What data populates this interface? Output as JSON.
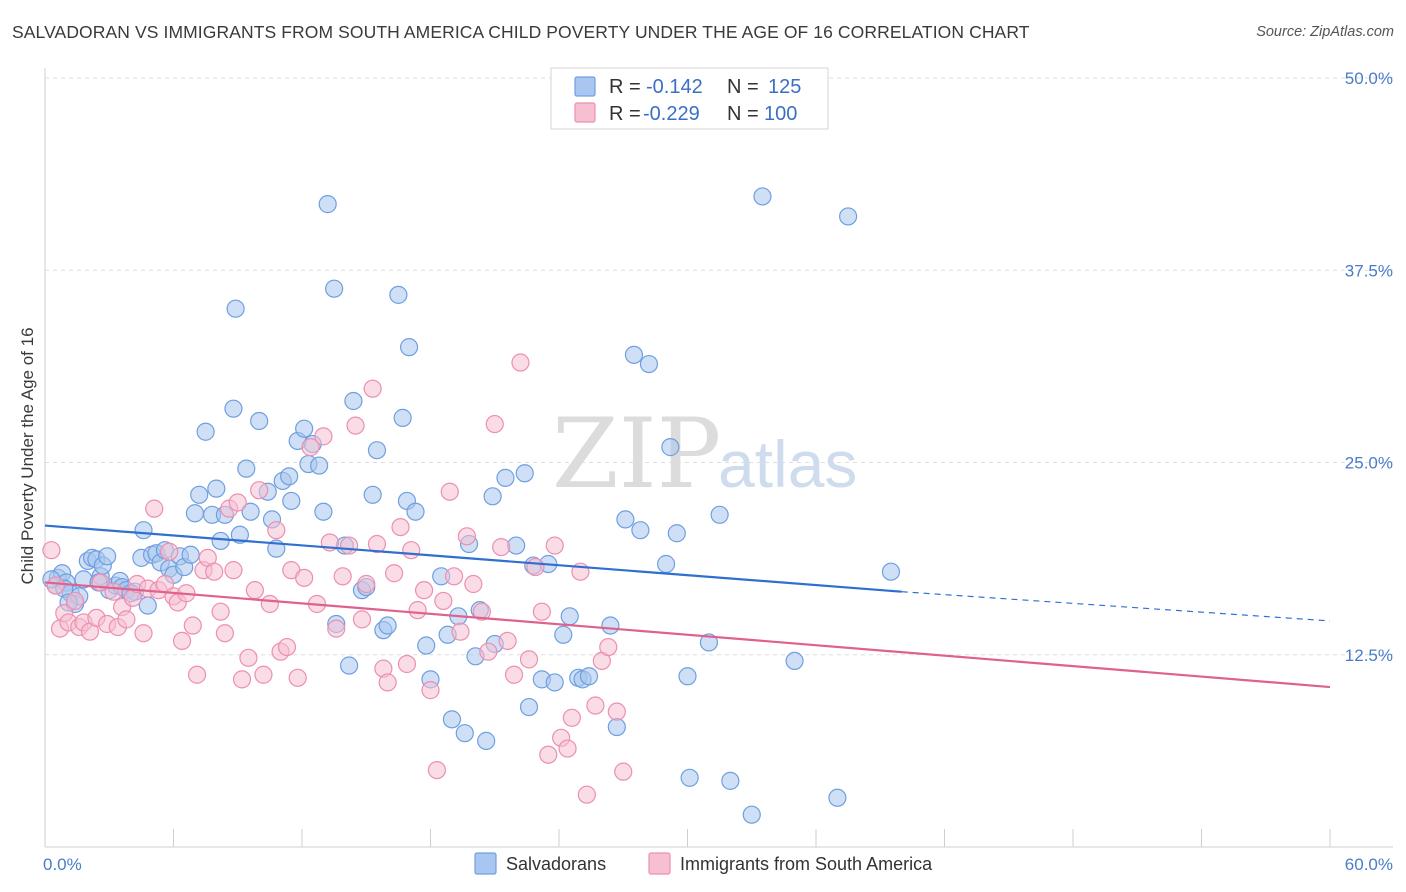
{
  "header": {
    "title": "SALVADORAN VS IMMIGRANTS FROM SOUTH AMERICA CHILD POVERTY UNDER THE AGE OF 16 CORRELATION CHART",
    "source": "Source: ZipAtlas.com"
  },
  "watermark": {
    "part1": "ZIP",
    "part2": "atlas"
  },
  "legend": {
    "rows": [
      {
        "r_label": "R =",
        "r_value": "-0.142",
        "n_label": "N =",
        "n_value": "125"
      },
      {
        "r_label": "R =",
        "r_value": "-0.229",
        "n_label": "N =",
        "n_value": "100"
      }
    ]
  },
  "bottom_legend": [
    "Salvadorans",
    "Immigrants from South America"
  ],
  "colors": {
    "blue_fill": "#a8c6ef",
    "blue_stroke": "#6f9fe0",
    "blue_line": "#2f6fd0",
    "pink_fill": "#f6bfd2",
    "pink_stroke": "#ec8fb0",
    "pink_line": "#e0608e"
  },
  "chart_data": {
    "type": "scatter",
    "xlabel": "",
    "ylabel": "Child Poverty Under the Age of 16",
    "xlim": [
      0,
      60
    ],
    "ylim": [
      0,
      50
    ],
    "x_tick_labels": [
      "0.0%",
      "60.0%"
    ],
    "y_tick_labels": [
      "50.0%",
      "37.5%",
      "25.0%",
      "12.5%"
    ],
    "y_ticks": [
      50,
      37.5,
      25,
      12.5
    ],
    "grid": true,
    "legend_position": "top-center",
    "series": [
      {
        "name": "Salvadorans",
        "trend": {
          "x": [
            0,
            40
          ],
          "y": [
            20.9,
            16.6
          ],
          "dashed_to": [
            60,
            14.7
          ]
        },
        "points": [
          [
            0.5,
            17.0
          ],
          [
            0.6,
            17.5
          ],
          [
            0.8,
            17.8
          ],
          [
            1.0,
            17.2
          ],
          [
            1.2,
            16.5
          ],
          [
            1.4,
            15.8
          ],
          [
            1.6,
            16.3
          ],
          [
            1.8,
            17.4
          ],
          [
            2.0,
            18.6
          ],
          [
            2.2,
            18.8
          ],
          [
            2.4,
            18.7
          ],
          [
            2.6,
            17.6
          ],
          [
            2.7,
            18.3
          ],
          [
            2.9,
            18.9
          ],
          [
            3.0,
            16.7
          ],
          [
            3.3,
            17.0
          ],
          [
            3.5,
            17.3
          ],
          [
            3.6,
            16.9
          ],
          [
            3.8,
            16.7
          ],
          [
            4.2,
            16.6
          ],
          [
            4.5,
            18.8
          ],
          [
            4.8,
            15.7
          ],
          [
            4.6,
            20.6
          ],
          [
            5.0,
            19.0
          ],
          [
            5.2,
            19.1
          ],
          [
            5.4,
            18.5
          ],
          [
            5.6,
            19.3
          ],
          [
            5.8,
            18.1
          ],
          [
            6.0,
            17.7
          ],
          [
            6.3,
            18.9
          ],
          [
            6.5,
            18.2
          ],
          [
            7.0,
            21.7
          ],
          [
            7.2,
            22.9
          ],
          [
            7.5,
            27.0
          ],
          [
            7.8,
            21.6
          ],
          [
            8.0,
            23.3
          ],
          [
            8.2,
            19.9
          ],
          [
            8.4,
            21.6
          ],
          [
            8.8,
            28.5
          ],
          [
            8.9,
            35.0
          ],
          [
            9.1,
            20.3
          ],
          [
            9.4,
            24.6
          ],
          [
            9.6,
            21.8
          ],
          [
            10.0,
            27.7
          ],
          [
            10.4,
            23.1
          ],
          [
            10.6,
            21.3
          ],
          [
            10.8,
            19.4
          ],
          [
            11.1,
            23.8
          ],
          [
            11.4,
            24.1
          ],
          [
            11.5,
            22.5
          ],
          [
            11.8,
            26.4
          ],
          [
            12.1,
            27.2
          ],
          [
            12.3,
            24.9
          ],
          [
            12.5,
            26.2
          ],
          [
            12.8,
            24.8
          ],
          [
            13.0,
            21.8
          ],
          [
            13.2,
            41.8
          ],
          [
            13.5,
            36.3
          ],
          [
            13.6,
            14.5
          ],
          [
            14.0,
            19.6
          ],
          [
            14.2,
            11.8
          ],
          [
            14.4,
            29.0
          ],
          [
            14.8,
            16.7
          ],
          [
            15.0,
            16.9
          ],
          [
            15.3,
            22.9
          ],
          [
            15.5,
            25.8
          ],
          [
            15.8,
            14.1
          ],
          [
            16.0,
            14.4
          ],
          [
            16.5,
            35.9
          ],
          [
            16.7,
            27.9
          ],
          [
            16.9,
            22.5
          ],
          [
            17.0,
            32.5
          ],
          [
            17.3,
            21.8
          ],
          [
            17.8,
            13.1
          ],
          [
            18.0,
            10.9
          ],
          [
            18.5,
            17.6
          ],
          [
            18.8,
            13.8
          ],
          [
            19.0,
            8.3
          ],
          [
            19.3,
            15.0
          ],
          [
            19.6,
            7.4
          ],
          [
            19.8,
            19.7
          ],
          [
            20.1,
            12.4
          ],
          [
            20.3,
            15.4
          ],
          [
            20.6,
            6.9
          ],
          [
            20.9,
            22.8
          ],
          [
            21.0,
            13.2
          ],
          [
            21.5,
            24.0
          ],
          [
            22.0,
            19.6
          ],
          [
            22.4,
            24.3
          ],
          [
            22.6,
            9.1
          ],
          [
            22.8,
            18.3
          ],
          [
            23.2,
            10.9
          ],
          [
            23.5,
            18.4
          ],
          [
            23.8,
            10.7
          ],
          [
            24.2,
            13.8
          ],
          [
            24.5,
            15.0
          ],
          [
            24.9,
            11.0
          ],
          [
            25.1,
            10.9
          ],
          [
            25.4,
            11.1
          ],
          [
            26.4,
            14.4
          ],
          [
            26.7,
            7.8
          ],
          [
            27.1,
            21.3
          ],
          [
            27.5,
            32.0
          ],
          [
            27.8,
            20.6
          ],
          [
            28.2,
            31.4
          ],
          [
            29.0,
            18.4
          ],
          [
            29.2,
            26.0
          ],
          [
            29.5,
            20.4
          ],
          [
            30.0,
            11.1
          ],
          [
            30.1,
            4.5
          ],
          [
            31.0,
            13.3
          ],
          [
            31.5,
            21.6
          ],
          [
            32.0,
            4.3
          ],
          [
            33.0,
            2.1
          ],
          [
            33.5,
            42.3
          ],
          [
            35.0,
            12.1
          ],
          [
            37.0,
            3.2
          ],
          [
            37.5,
            41.0
          ],
          [
            39.5,
            17.9
          ],
          [
            0.3,
            17.4
          ],
          [
            0.9,
            16.8
          ],
          [
            1.1,
            15.9
          ],
          [
            2.5,
            17.2
          ],
          [
            4.0,
            16.5
          ],
          [
            6.8,
            19.0
          ]
        ]
      },
      {
        "name": "Immigrants from South America",
        "trend": {
          "x": [
            0,
            60
          ],
          "y": [
            17.2,
            10.4
          ]
        },
        "points": [
          [
            0.3,
            19.3
          ],
          [
            0.5,
            17.0
          ],
          [
            0.7,
            14.2
          ],
          [
            0.9,
            15.2
          ],
          [
            1.1,
            14.6
          ],
          [
            1.4,
            16.0
          ],
          [
            1.6,
            14.3
          ],
          [
            1.8,
            14.6
          ],
          [
            2.1,
            14.0
          ],
          [
            2.4,
            14.9
          ],
          [
            2.6,
            17.2
          ],
          [
            2.9,
            14.5
          ],
          [
            3.2,
            16.6
          ],
          [
            3.4,
            14.3
          ],
          [
            3.6,
            15.6
          ],
          [
            3.8,
            14.8
          ],
          [
            4.1,
            16.2
          ],
          [
            4.3,
            17.1
          ],
          [
            4.6,
            13.9
          ],
          [
            4.8,
            16.8
          ],
          [
            5.1,
            22.0
          ],
          [
            5.3,
            16.7
          ],
          [
            5.6,
            17.1
          ],
          [
            5.8,
            19.2
          ],
          [
            6.0,
            16.3
          ],
          [
            6.2,
            15.9
          ],
          [
            6.4,
            13.4
          ],
          [
            6.6,
            16.5
          ],
          [
            6.9,
            14.4
          ],
          [
            7.1,
            11.2
          ],
          [
            7.4,
            18.0
          ],
          [
            7.6,
            18.8
          ],
          [
            7.9,
            17.9
          ],
          [
            8.2,
            15.3
          ],
          [
            8.4,
            13.9
          ],
          [
            8.6,
            22.0
          ],
          [
            8.8,
            18.0
          ],
          [
            9.0,
            22.4
          ],
          [
            9.2,
            10.9
          ],
          [
            9.5,
            12.3
          ],
          [
            9.8,
            16.7
          ],
          [
            10.0,
            23.2
          ],
          [
            10.2,
            11.2
          ],
          [
            10.5,
            15.8
          ],
          [
            10.8,
            20.6
          ],
          [
            11.0,
            12.7
          ],
          [
            11.3,
            13.0
          ],
          [
            11.5,
            18.0
          ],
          [
            11.8,
            11.0
          ],
          [
            12.1,
            17.5
          ],
          [
            12.4,
            26.0
          ],
          [
            12.7,
            15.8
          ],
          [
            13.0,
            26.7
          ],
          [
            13.3,
            19.8
          ],
          [
            13.6,
            14.2
          ],
          [
            13.9,
            17.6
          ],
          [
            14.2,
            19.6
          ],
          [
            14.5,
            27.4
          ],
          [
            14.8,
            14.8
          ],
          [
            15.0,
            17.1
          ],
          [
            15.3,
            29.8
          ],
          [
            15.5,
            19.7
          ],
          [
            15.8,
            11.6
          ],
          [
            16.0,
            10.7
          ],
          [
            16.3,
            17.8
          ],
          [
            16.6,
            20.8
          ],
          [
            16.9,
            11.9
          ],
          [
            17.1,
            19.3
          ],
          [
            17.4,
            15.4
          ],
          [
            17.7,
            16.7
          ],
          [
            18.0,
            10.2
          ],
          [
            18.3,
            5.0
          ],
          [
            18.6,
            16.0
          ],
          [
            18.9,
            23.1
          ],
          [
            19.1,
            17.6
          ],
          [
            19.4,
            14.0
          ],
          [
            19.7,
            20.2
          ],
          [
            20.0,
            17.1
          ],
          [
            20.4,
            15.3
          ],
          [
            20.7,
            12.7
          ],
          [
            21.0,
            27.5
          ],
          [
            21.3,
            19.5
          ],
          [
            21.6,
            13.4
          ],
          [
            21.9,
            11.2
          ],
          [
            22.2,
            31.5
          ],
          [
            22.6,
            12.2
          ],
          [
            22.9,
            18.2
          ],
          [
            23.2,
            15.3
          ],
          [
            23.5,
            6.0
          ],
          [
            23.8,
            19.6
          ],
          [
            24.1,
            7.1
          ],
          [
            24.4,
            6.4
          ],
          [
            24.6,
            8.4
          ],
          [
            25.0,
            17.9
          ],
          [
            25.3,
            3.4
          ],
          [
            25.7,
            9.2
          ],
          [
            26.0,
            12.1
          ],
          [
            26.3,
            13.0
          ],
          [
            26.7,
            8.8
          ],
          [
            27.0,
            4.9
          ]
        ]
      }
    ]
  }
}
